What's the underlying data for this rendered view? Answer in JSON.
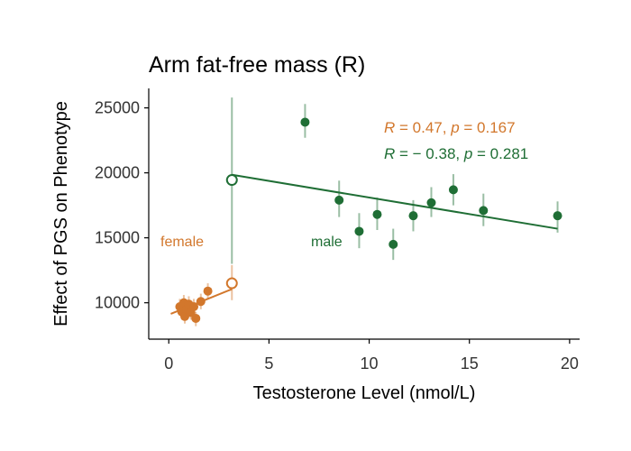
{
  "chart_data": {
    "type": "scatter",
    "title": "Arm fat-free mass (R)",
    "xlabel": "Testosterone Level (nmol/L)",
    "ylabel": "Effect of PGS on Phenotype",
    "xlim": [
      -1,
      20.5
    ],
    "ylim": [
      7200,
      26500
    ],
    "x_ticks": [
      0,
      5,
      10,
      15,
      20
    ],
    "y_ticks": [
      10000,
      15000,
      20000,
      25000
    ],
    "grid": false,
    "series": [
      {
        "name": "female",
        "color": "#d2772c",
        "points": [
          {
            "x": 0.55,
            "y": 9700,
            "lo": 9200,
            "hi": 10300
          },
          {
            "x": 0.65,
            "y": 9300,
            "lo": 8700,
            "hi": 9900
          },
          {
            "x": 0.75,
            "y": 10000,
            "lo": 9500,
            "hi": 10600
          },
          {
            "x": 0.8,
            "y": 8950,
            "lo": 8400,
            "hi": 9500
          },
          {
            "x": 0.9,
            "y": 9500,
            "lo": 9000,
            "hi": 10100
          },
          {
            "x": 1.0,
            "y": 9900,
            "lo": 9300,
            "hi": 10500
          },
          {
            "x": 1.1,
            "y": 9250,
            "lo": 8700,
            "hi": 9800
          },
          {
            "x": 1.25,
            "y": 9700,
            "lo": 9100,
            "hi": 10300
          },
          {
            "x": 1.35,
            "y": 8800,
            "lo": 8200,
            "hi": 9300
          },
          {
            "x": 1.6,
            "y": 10100,
            "lo": 9500,
            "hi": 10700
          },
          {
            "x": 1.95,
            "y": 10900,
            "lo": 10300,
            "hi": 11500
          }
        ],
        "open_point": {
          "x": 3.15,
          "y": 11500,
          "lo": 10200,
          "hi": 12900
        },
        "fit": {
          "x": [
            0.1,
            3.15
          ],
          "y": [
            9150,
            11050
          ]
        },
        "stats_text": {
          "r_sym": "R",
          "r_val": " = 0.47, ",
          "p_sym": "p",
          "p_val": " = 0.167"
        },
        "label": "female"
      },
      {
        "name": "male",
        "color": "#1f6e35",
        "points": [
          {
            "x": 6.8,
            "y": 23900,
            "lo": 22700,
            "hi": 25300
          },
          {
            "x": 8.5,
            "y": 17900,
            "lo": 16600,
            "hi": 19400
          },
          {
            "x": 9.5,
            "y": 15500,
            "lo": 14200,
            "hi": 16900
          },
          {
            "x": 10.4,
            "y": 16800,
            "lo": 15600,
            "hi": 18100
          },
          {
            "x": 11.2,
            "y": 14500,
            "lo": 13300,
            "hi": 15700
          },
          {
            "x": 12.2,
            "y": 16700,
            "lo": 15500,
            "hi": 17900
          },
          {
            "x": 13.1,
            "y": 17700,
            "lo": 16600,
            "hi": 18900
          },
          {
            "x": 14.2,
            "y": 18700,
            "lo": 17500,
            "hi": 19900
          },
          {
            "x": 15.7,
            "y": 17100,
            "lo": 15900,
            "hi": 18400
          },
          {
            "x": 19.4,
            "y": 16700,
            "lo": 15400,
            "hi": 17800
          }
        ],
        "open_point": {
          "x": 3.15,
          "y": 19450,
          "lo": 13000,
          "hi": 25800
        },
        "fit": {
          "x": [
            3.15,
            19.4
          ],
          "y": [
            19850,
            15700
          ]
        },
        "stats_text": {
          "r_sym": "R",
          "r_val": " = − 0.38, ",
          "p_sym": "p",
          "p_val": " = 0.281"
        },
        "label": "male"
      }
    ]
  }
}
